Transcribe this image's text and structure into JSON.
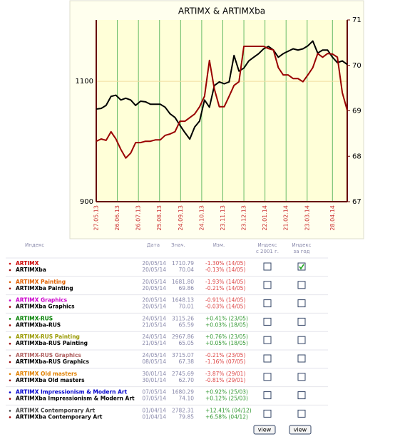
{
  "chart_data": {
    "type": "line",
    "title": "ARTIMX & ARTIMXba",
    "x": [
      "27.05.13",
      "03.06.13",
      "10.06.13",
      "17.06.13",
      "24.06.13",
      "01.07.13",
      "08.07.13",
      "15.07.13",
      "22.07.13",
      "29.07.13",
      "05.08.13",
      "12.08.13",
      "19.08.13",
      "26.08.13",
      "02.09.13",
      "09.09.13",
      "16.09.13",
      "23.09.13",
      "30.09.13",
      "07.10.13",
      "14.10.13",
      "21.10.13",
      "28.10.13",
      "04.11.13",
      "11.11.13",
      "18.11.13",
      "25.11.13",
      "02.12.13",
      "09.12.13",
      "16.12.13",
      "23.12.13",
      "30.12.13",
      "06.01.14",
      "13.01.14",
      "20.01.14",
      "27.01.14",
      "03.02.14",
      "10.02.14",
      "17.02.14",
      "24.02.14",
      "03.03.14",
      "10.03.14",
      "17.03.14",
      "24.03.14",
      "31.03.14",
      "07.04.14",
      "14.04.14",
      "21.04.14",
      "28.04.14",
      "05.05.14",
      "12.05.14",
      "19.05.14"
    ],
    "xlim": [
      "27.05.13",
      "19.05.14"
    ],
    "xticks": [
      "27.05.13",
      "26.06.13",
      "26.07.13",
      "25.08.13",
      "24.09.13",
      "24.10.13",
      "23.11.13",
      "23.12.13",
      "22.01.14",
      "21.02.14",
      "23.03.14",
      "28.04.14"
    ],
    "ylim": [
      900,
      1202
    ],
    "yticks": [
      900,
      1100
    ],
    "y2lim": [
      67,
      71
    ],
    "y2ticks": [
      67,
      68,
      69,
      70,
      71
    ],
    "grid": true,
    "series": [
      {
        "name": "ARTIMX",
        "color": "#000000",
        "values": [
          1054,
          1055,
          1060,
          1075,
          1077,
          1069,
          1072,
          1069,
          1060,
          1067,
          1066,
          1062,
          1062,
          1062,
          1057,
          1046,
          1040,
          1027,
          1015,
          1004,
          1024,
          1034,
          1069,
          1057,
          1093,
          1099,
          1096,
          1099,
          1143,
          1117,
          1122,
          1134,
          1140,
          1146,
          1154,
          1158,
          1152,
          1140,
          1146,
          1150,
          1154,
          1152,
          1154,
          1159,
          1167,
          1147,
          1152,
          1152,
          1140,
          1131,
          1134,
          1128
        ]
      },
      {
        "name": "ARTIMXba",
        "color": "#990000",
        "axis": "y2",
        "values": [
          68.33,
          68.38,
          68.35,
          68.54,
          68.38,
          68.15,
          67.96,
          68.07,
          68.3,
          68.3,
          68.33,
          68.33,
          68.36,
          68.36,
          68.46,
          68.49,
          68.54,
          68.77,
          68.77,
          68.85,
          68.93,
          69.09,
          69.32,
          70.11,
          69.48,
          69.09,
          69.09,
          69.32,
          69.56,
          69.64,
          70.42,
          70.42,
          70.42,
          70.42,
          70.42,
          70.37,
          70.34,
          69.95,
          69.79,
          69.79,
          69.71,
          69.71,
          69.64,
          69.79,
          69.95,
          70.26,
          70.18,
          70.26,
          70.25,
          70.18,
          69.4,
          69.01
        ]
      }
    ]
  },
  "table": {
    "header": [
      "Индекс",
      "Дата",
      "Знач.",
      "Изм.",
      [
        "Индекс",
        "с 2001 г."
      ],
      [
        "Индекс",
        "за год"
      ]
    ],
    "groups": [
      {
        "color": "#cc0000",
        "since_2001": false,
        "year": true,
        "rows": [
          [
            "ARTIMX",
            "20/05/14",
            "1710.79",
            "-1.30% (14/05)"
          ],
          [
            "ARTIMXba",
            "20/05/14",
            "70.04",
            "-0.13% (14/05)"
          ]
        ]
      },
      {
        "color": "#e06000",
        "since_2001": false,
        "year": false,
        "rows": [
          [
            "ARTIMX Painting",
            "20/05/14",
            "1681.80",
            "-1.93% (14/05)"
          ],
          [
            "ARTIMXba Painting",
            "20/05/14",
            "69.86",
            "-0.21% (14/05)"
          ]
        ]
      },
      {
        "color": "#cc00cc",
        "since_2001": false,
        "year": false,
        "rows": [
          [
            "ARTIMX Graphics",
            "20/05/14",
            "1648.13",
            "-0.91% (14/05)"
          ],
          [
            "ARTIMXba Graphics",
            "20/05/14",
            "70.01",
            "-0.03% (14/05)"
          ]
        ]
      },
      {
        "color": "#008000",
        "since_2001": false,
        "year": false,
        "rows": [
          [
            "ARTIMX-RUS",
            "24/05/14",
            "3115.26",
            "+0.41% (23/05)"
          ],
          [
            "ARTIMXba-RUS",
            "21/05/14",
            "65.59",
            "+0.03% (18/05)"
          ]
        ]
      },
      {
        "color": "#999900",
        "since_2001": false,
        "year": false,
        "rows": [
          [
            "ARTIMX-RUS Painting",
            "24/05/14",
            "2967.86",
            "+0.76% (23/05)"
          ],
          [
            "ARTIMXba-RUS Painting",
            "21/05/14",
            "65.05",
            "+0.05% (18/05)"
          ]
        ]
      },
      {
        "color": "#b06060",
        "since_2001": false,
        "year": false,
        "rows": [
          [
            "ARTIMX-RUS Graphics",
            "24/05/14",
            "3715.07",
            "-0.21% (23/05)"
          ],
          [
            "ARTIMXba-RUS Graphics",
            "08/05/14",
            "67.38",
            "-1.16% (07/05)"
          ]
        ]
      },
      {
        "color": "#e08000",
        "since_2001": false,
        "year": false,
        "rows": [
          [
            "ARTIMX Old masters",
            "30/01/14",
            "2745.69",
            "-3.87% (29/01)"
          ],
          [
            "ARTIMXba Old masters",
            "30/01/14",
            "62.70",
            "-0.81% (29/01)"
          ]
        ]
      },
      {
        "color": "#0000cc",
        "since_2001": false,
        "year": false,
        "rows": [
          [
            "ARTIMX Impressionism & Modern Art",
            "07/05/14",
            "1680.29",
            "+0.92% (25/03)"
          ],
          [
            "ARTIMXba Impressionism & Modern Art",
            "07/05/14",
            "74.10",
            "+0.12% (25/03)"
          ]
        ]
      },
      {
        "color": "#444444",
        "since_2001": false,
        "year": false,
        "rows": [
          [
            "ARTIMX Contemporary Art",
            "01/04/14",
            "2782.31",
            "+12.41% (04/12)"
          ],
          [
            "ARTIMXba Contemporary Art",
            "01/04/14",
            "79.85",
            "+6.58% (04/12)"
          ]
        ]
      }
    ],
    "buttons": [
      "view",
      "view"
    ]
  }
}
